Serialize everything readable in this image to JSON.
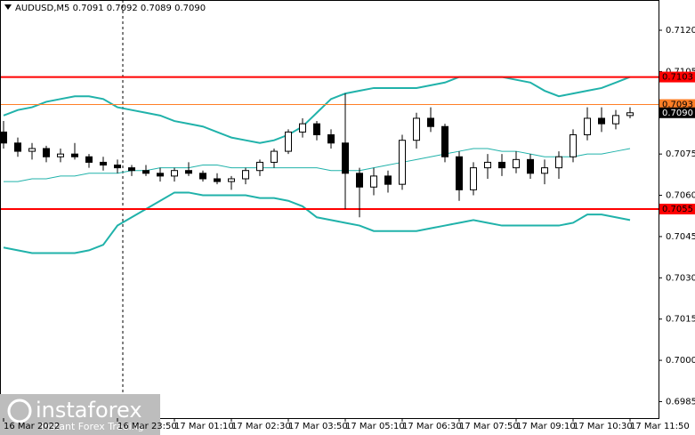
{
  "chart_data": {
    "type": "candlestick",
    "title": "AUDUSD,M5  0.7091 0.7092 0.7089 0.7090",
    "categories": [
      "16 Mar 2022",
      null,
      null,
      null,
      null,
      null,
      null,
      null,
      "16 Mar 23:50",
      null,
      null,
      null,
      "17 Mar 01:10",
      null,
      null,
      null,
      "17 Mar 02:30",
      null,
      null,
      null,
      "17 Mar 03:50",
      null,
      null,
      null,
      "17 Mar 05:10",
      null,
      null,
      null,
      "17 Mar 06:30",
      null,
      null,
      null,
      "17 Mar 07:50",
      null,
      null,
      null,
      "17 Mar 09:10",
      null,
      null,
      null,
      "17 Mar 10:30",
      null,
      null,
      null,
      "17 Mar 11:50"
    ],
    "open": [
      0.7083,
      0.7079,
      0.7076,
      0.7077,
      0.7074,
      0.7075,
      0.7074,
      0.7072,
      0.7071,
      0.707,
      0.7069,
      0.7068,
      0.7067,
      0.7069,
      0.7068,
      0.7066,
      0.7065,
      0.7066,
      0.7069,
      0.7072,
      0.7076,
      0.7083,
      0.7086,
      0.7082,
      0.7079,
      0.7068,
      0.7063,
      0.7067,
      0.7064,
      0.708,
      0.7088,
      0.7085,
      0.7074,
      0.7062,
      0.707,
      0.7072,
      0.707,
      0.7073,
      0.7068,
      0.707,
      0.7074,
      0.7082,
      0.7088,
      0.7086,
      0.7089
    ],
    "high": [
      0.7087,
      0.7081,
      0.7079,
      0.7078,
      0.7077,
      0.7079,
      0.7075,
      0.7074,
      0.7073,
      0.7071,
      0.7071,
      0.707,
      0.707,
      0.7072,
      0.7069,
      0.7068,
      0.7067,
      0.707,
      0.7073,
      0.7077,
      0.7084,
      0.7088,
      0.7087,
      0.7084,
      0.7097,
      0.707,
      0.707,
      0.7069,
      0.7082,
      0.709,
      0.7092,
      0.7086,
      0.7076,
      0.7072,
      0.7075,
      0.7075,
      0.7076,
      0.7075,
      0.7073,
      0.7076,
      0.7084,
      0.7092,
      0.7092,
      0.7091,
      0.7092
    ],
    "low": [
      0.7077,
      0.7074,
      0.7073,
      0.7072,
      0.7072,
      0.7073,
      0.707,
      0.7069,
      0.7068,
      0.7067,
      0.7067,
      0.7065,
      0.7065,
      0.7067,
      0.7065,
      0.7064,
      0.7062,
      0.7064,
      0.7067,
      0.707,
      0.7075,
      0.7081,
      0.708,
      0.7077,
      0.7055,
      0.7052,
      0.706,
      0.7061,
      0.7062,
      0.7077,
      0.7083,
      0.7072,
      0.7058,
      0.706,
      0.7066,
      0.7067,
      0.7068,
      0.7066,
      0.7064,
      0.7066,
      0.7072,
      0.708,
      0.7083,
      0.7084,
      0.7088
    ],
    "close": [
      0.7079,
      0.7076,
      0.7077,
      0.7074,
      0.7075,
      0.7074,
      0.7072,
      0.7071,
      0.707,
      0.7069,
      0.7068,
      0.7067,
      0.7069,
      0.7068,
      0.7066,
      0.7065,
      0.7066,
      0.7069,
      0.7072,
      0.7076,
      0.7083,
      0.7086,
      0.7082,
      0.7079,
      0.7068,
      0.7063,
      0.7067,
      0.7064,
      0.708,
      0.7088,
      0.7085,
      0.7074,
      0.7062,
      0.707,
      0.7072,
      0.707,
      0.7073,
      0.7068,
      0.707,
      0.7074,
      0.7082,
      0.7088,
      0.7086,
      0.7089,
      0.709
    ],
    "up_color": "#ffffff",
    "down_color": "#000000",
    "bands": [
      {
        "color": "#20b2aa",
        "width": 2,
        "values": [
          0.7089,
          0.7091,
          0.7092,
          0.7094,
          0.7095,
          0.7096,
          0.7096,
          0.7095,
          0.7092,
          0.7091,
          0.709,
          0.7089,
          0.7087,
          0.7086,
          0.7085,
          0.7083,
          0.7081,
          0.708,
          0.7079,
          0.708,
          0.7082,
          0.7085,
          0.709,
          0.7095,
          0.7097,
          0.7098,
          0.7099,
          0.7099,
          0.7099,
          0.7099,
          0.71,
          0.7101,
          0.7103,
          0.7103,
          0.7103,
          0.7103,
          0.7102,
          0.7101,
          0.7098,
          0.7096,
          0.7097,
          0.7098,
          0.7099,
          0.7101,
          0.7103
        ]
      },
      {
        "color": "#20b2aa",
        "width": 1,
        "values": [
          0.7065,
          0.7065,
          0.7066,
          0.7066,
          0.7067,
          0.7067,
          0.7068,
          0.7068,
          0.7068,
          0.7069,
          0.7069,
          0.707,
          0.707,
          0.707,
          0.7071,
          0.7071,
          0.707,
          0.707,
          0.707,
          0.707,
          0.707,
          0.707,
          0.707,
          0.7069,
          0.7069,
          0.7069,
          0.707,
          0.7071,
          0.7072,
          0.7073,
          0.7074,
          0.7075,
          0.7076,
          0.7077,
          0.7077,
          0.7076,
          0.7076,
          0.7075,
          0.7074,
          0.7074,
          0.7074,
          0.7075,
          0.7075,
          0.7076,
          0.7077
        ]
      },
      {
        "color": "#20b2aa",
        "width": 2,
        "values": [
          0.7041,
          0.704,
          0.7039,
          0.7039,
          0.7039,
          0.7039,
          0.704,
          0.7042,
          0.7049,
          0.7052,
          0.7055,
          0.7058,
          0.7061,
          0.7061,
          0.706,
          0.706,
          0.706,
          0.706,
          0.7059,
          0.7059,
          0.7058,
          0.7056,
          0.7052,
          0.7051,
          0.705,
          0.7049,
          0.7047,
          0.7047,
          0.7047,
          0.7047,
          0.7048,
          0.7049,
          0.705,
          0.7051,
          0.705,
          0.7049,
          0.7049,
          0.7049,
          0.7049,
          0.7049,
          0.705,
          0.7053,
          0.7053,
          0.7052,
          0.7051
        ]
      }
    ],
    "levels": [
      {
        "value": 0.7103,
        "color": "#ff0000",
        "width": 2
      },
      {
        "value": 0.7093,
        "color": "#ff7f27",
        "width": 1
      },
      {
        "value": 0.7055,
        "color": "#ff0000",
        "width": 2
      }
    ],
    "last_price": {
      "value": 0.709,
      "label": "0.7090"
    },
    "ylim": [
      0.6979,
      0.7131
    ],
    "yticks": [
      {
        "value": 0.712,
        "label": "0.7120"
      },
      0.7105,
      {
        "value": 0.709,
        "label": "0.7090"
      },
      0.7075,
      {
        "value": 0.706,
        "label": "0.7060"
      },
      0.7045,
      {
        "value": 0.703,
        "label": "0.7030"
      },
      0.7015,
      {
        "value": 0.7,
        "label": "0.7000"
      },
      0.6985
    ],
    "watermark": {
      "brand": "instaforex",
      "tagline": "Instant Forex Trading"
    }
  }
}
